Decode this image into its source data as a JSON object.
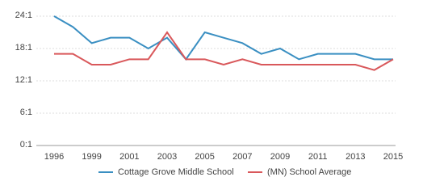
{
  "chart_data": {
    "type": "line",
    "categories": [
      "1996",
      null,
      "1999",
      null,
      "2001",
      null,
      "2003",
      null,
      "2005",
      null,
      "2007",
      null,
      "2009",
      null,
      "2011",
      null,
      "2013",
      null,
      "2015"
    ],
    "series": [
      {
        "name": "Cottage Grove Middle School",
        "color": "#3a8fc2",
        "values": [
          24,
          22,
          19,
          20,
          20,
          18,
          20,
          16,
          21,
          20,
          19,
          17,
          18,
          16,
          17,
          17,
          17,
          16,
          16
        ]
      },
      {
        "name": "(MN) School Average",
        "color": "#d9585b",
        "values": [
          17,
          17,
          15,
          15,
          16,
          16,
          21,
          16,
          16,
          15,
          16,
          15,
          15,
          15,
          15,
          15,
          15,
          14,
          16
        ]
      }
    ],
    "ylim": [
      0,
      24
    ],
    "yticks": [
      {
        "value": 0,
        "label": "0:1"
      },
      {
        "value": 6,
        "label": "6:1"
      },
      {
        "value": 12,
        "label": "12:1"
      },
      {
        "value": 18,
        "label": "18:1"
      },
      {
        "value": 24,
        "label": "24:1"
      }
    ],
    "grid": true
  }
}
